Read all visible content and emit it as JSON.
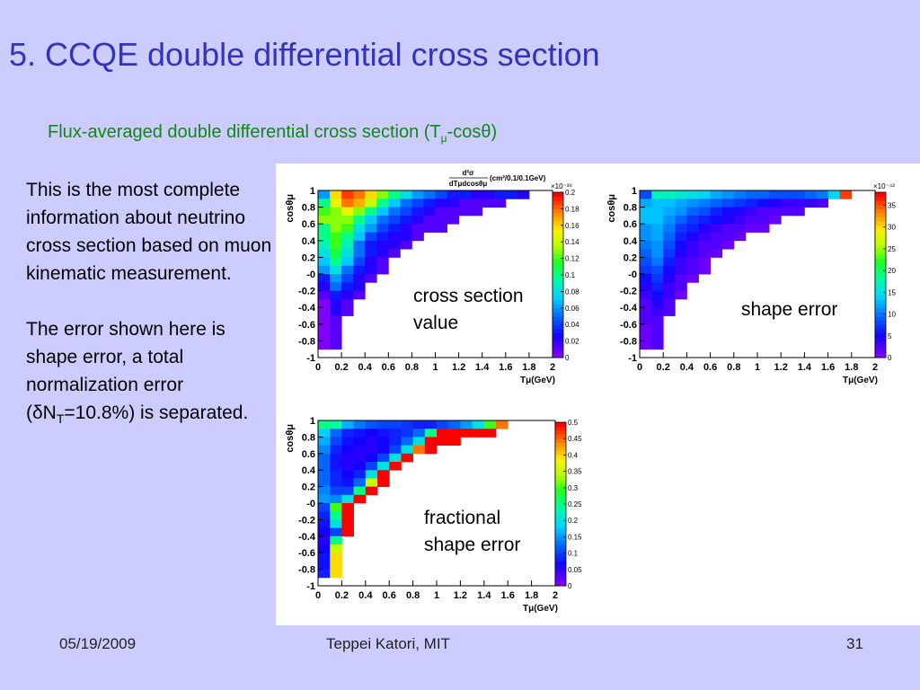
{
  "slide": {
    "title": "5. CCQE double differential cross section",
    "subtitle": {
      "text_before": "Flux-averaged double differential cross section (T",
      "text_sub": "μ",
      "text_after": "-cosθ)"
    },
    "paragraphs": [
      {
        "text": "This is the most complete information about neutrino cross section based on muon kinematic measurement."
      },
      {
        "text_before": "The error shown here is shape error, a total normalization error (δN",
        "text_sub": "T",
        "text_after": "=10.8%) is separated."
      }
    ],
    "footer": {
      "date": "05/19/2009",
      "author": "Teppei Katori, MIT",
      "page": "31"
    }
  },
  "chart_data": [
    {
      "type": "heatmap",
      "annotation": [
        "cross section",
        "value"
      ],
      "header_numerator": "d²σ",
      "header_denominator": "dTμdcosθμ",
      "header_unit": "(cm²/0.1/0.1GeV)",
      "xlabel": "Tμ(GeV)",
      "ylabel": "cosθμ",
      "xlim": [
        0,
        2
      ],
      "ylim": [
        -1,
        1
      ],
      "x_ticks": [
        "0",
        "0.2",
        "0.4",
        "0.6",
        "0.8",
        "1",
        "1.2",
        "1.4",
        "1.6",
        "1.8",
        "2"
      ],
      "y_ticks": [
        "1",
        "0.8",
        "0.6",
        "0.4",
        "0.2",
        "-0",
        "-0.2",
        "-0.4",
        "-0.6",
        "-0.8",
        "-1"
      ],
      "colorbar_ticks": [
        "0.2",
        "0.18",
        "0.16",
        "0.14",
        "0.12",
        "0.1",
        "0.08",
        "0.06",
        "0.04",
        "0.02",
        "0"
      ],
      "colorbar_range": [
        0,
        0.2
      ],
      "colorbar_multiplier": "×10⁻³⁹",
      "values": [
        [
          0.06,
          0.16,
          0.19,
          0.18,
          0.16,
          0.13,
          0.1,
          0.08,
          0.06,
          0.05,
          0.04,
          0.03,
          0.03,
          0.02,
          0.02,
          0.03,
          0.03,
          0.02
        ],
        [
          0.1,
          0.15,
          0.18,
          0.17,
          0.14,
          0.1,
          0.07,
          0.05,
          0.04,
          0.03,
          0.02,
          0.02,
          0.01,
          0.01,
          0.01,
          0.01
        ],
        [
          0.12,
          0.13,
          0.15,
          0.13,
          0.1,
          0.07,
          0.05,
          0.04,
          0.03,
          0.02,
          0.01,
          0.01,
          0.01,
          0.01
        ],
        [
          0.13,
          0.13,
          0.13,
          0.1,
          0.07,
          0.05,
          0.04,
          0.03,
          0.02,
          0.01,
          0.01,
          0.01
        ],
        [
          0.1,
          0.13,
          0.12,
          0.08,
          0.06,
          0.04,
          0.03,
          0.02,
          0.01,
          0.01,
          0.01
        ],
        [
          0.1,
          0.12,
          0.1,
          0.07,
          0.04,
          0.03,
          0.02,
          0.02,
          0.01
        ],
        [
          0.09,
          0.12,
          0.09,
          0.05,
          0.03,
          0.02,
          0.02,
          0.01
        ],
        [
          0.08,
          0.11,
          0.08,
          0.05,
          0.03,
          0.02,
          0.01
        ],
        [
          0.07,
          0.1,
          0.07,
          0.04,
          0.02,
          0.01
        ],
        [
          0.06,
          0.08,
          0.05,
          0.03,
          0.02,
          0.01
        ],
        [
          0.03,
          0.06,
          0.04,
          0.02,
          0.01
        ],
        [
          0.02,
          0.05,
          0.03,
          0.02
        ],
        [
          0.01,
          0.03,
          0.02,
          0.01
        ],
        [
          0.0,
          0.02,
          0.01
        ],
        [
          0.0,
          0.02,
          0.01
        ],
        [
          0.0,
          0.01
        ],
        [
          0.0,
          0.01
        ],
        [
          0.0,
          0.01
        ],
        [
          0.0,
          0.01
        ]
      ]
    },
    {
      "type": "heatmap",
      "annotation": [
        "shape error"
      ],
      "xlabel": "Tμ(GeV)",
      "ylabel": "cosθμ",
      "xlim": [
        0,
        2
      ],
      "ylim": [
        -1,
        1
      ],
      "x_ticks": [
        "0",
        "0.2",
        "0.4",
        "0.6",
        "0.8",
        "1",
        "1.2",
        "1.4",
        "1.6",
        "1.8",
        "2"
      ],
      "y_ticks": [
        "1",
        "0.8",
        "0.6",
        "0.4",
        "0.2",
        "-0",
        "-0.2",
        "-0.4",
        "-0.6",
        "-0.8",
        "-1"
      ],
      "colorbar_ticks": [
        "35",
        "30",
        "25",
        "20",
        "15",
        "10",
        "5",
        "0"
      ],
      "colorbar_range": [
        0,
        38
      ],
      "colorbar_multiplier": "×10⁻⁴²",
      "values": [
        [
          8,
          17,
          17,
          16,
          15,
          14,
          12,
          11,
          10,
          9,
          9,
          8,
          8,
          8,
          9,
          10,
          14,
          36
        ],
        [
          12,
          13,
          13,
          12,
          11,
          10,
          9,
          8,
          7,
          6,
          5,
          4,
          3,
          3,
          3,
          2
        ],
        [
          13,
          13,
          12,
          11,
          9,
          8,
          6,
          5,
          4,
          3,
          2,
          2,
          2,
          2
        ],
        [
          13,
          13,
          11,
          9,
          7,
          6,
          5,
          4,
          3,
          2,
          2,
          1
        ],
        [
          11,
          12,
          10,
          7,
          6,
          4,
          3,
          2,
          2,
          1,
          1
        ],
        [
          11,
          12,
          9,
          6,
          4,
          3,
          2,
          2,
          1
        ],
        [
          10,
          11,
          8,
          5,
          3,
          2,
          2,
          1
        ],
        [
          9,
          11,
          7,
          4,
          3,
          2,
          1
        ],
        [
          8,
          10,
          6,
          3,
          2,
          1
        ],
        [
          7,
          8,
          5,
          3,
          2,
          1
        ],
        [
          5,
          7,
          4,
          2,
          1
        ],
        [
          4,
          6,
          3,
          2
        ],
        [
          3,
          5,
          3,
          1
        ],
        [
          2,
          4,
          2
        ],
        [
          2,
          3,
          2
        ],
        [
          2,
          2
        ],
        [
          1,
          2
        ],
        [
          1,
          2
        ],
        [
          1,
          2
        ]
      ]
    },
    {
      "type": "heatmap",
      "annotation": [
        "fractional",
        "shape error"
      ],
      "xlabel": "Tμ(GeV)",
      "ylabel": "cosθμ",
      "xlim": [
        0,
        2
      ],
      "ylim": [
        -1,
        1
      ],
      "x_ticks": [
        "0",
        "0.2",
        "0.4",
        "0.6",
        "0.8",
        "1",
        "1.2",
        "1.4",
        "1.6",
        "1.8",
        "2"
      ],
      "y_ticks": [
        "1",
        "0.8",
        "0.6",
        "0.4",
        "0.2",
        "-0",
        "-0.2",
        "-0.4",
        "-0.6",
        "-0.8",
        "-1"
      ],
      "colorbar_ticks": [
        "0.5",
        "0.45",
        "0.4",
        "0.35",
        "0.3",
        "0.25",
        "0.2",
        "0.15",
        "0.1",
        "0.05",
        "0"
      ],
      "colorbar_range": [
        0,
        0.5
      ],
      "values": [
        [
          0.25,
          0.24,
          0.16,
          0.13,
          0.11,
          0.1,
          0.1,
          0.09,
          0.08,
          0.08,
          0.1,
          0.12,
          0.15,
          0.2,
          0.3,
          0.45
        ],
        [
          0.18,
          0.12,
          0.08,
          0.07,
          0.06,
          0.07,
          0.08,
          0.09,
          0.12,
          0.25,
          0.5,
          0.5,
          0.5,
          0.5,
          0.5
        ],
        [
          0.16,
          0.1,
          0.07,
          0.06,
          0.05,
          0.06,
          0.08,
          0.12,
          0.2,
          0.5,
          0.5,
          0.5
        ],
        [
          0.14,
          0.08,
          0.06,
          0.05,
          0.05,
          0.06,
          0.1,
          0.2,
          0.45,
          0.5
        ],
        [
          0.12,
          0.07,
          0.05,
          0.05,
          0.06,
          0.1,
          0.2,
          0.5
        ],
        [
          0.12,
          0.07,
          0.05,
          0.06,
          0.1,
          0.2,
          0.5
        ],
        [
          0.12,
          0.08,
          0.06,
          0.08,
          0.2,
          0.5
        ],
        [
          0.12,
          0.08,
          0.07,
          0.12,
          0.35,
          0.5
        ],
        [
          0.14,
          0.1,
          0.1,
          0.25,
          0.5
        ],
        [
          0.15,
          0.14,
          0.2,
          0.5
        ],
        [
          0.1,
          0.3,
          0.5
        ],
        [
          0.08,
          0.25,
          0.5
        ],
        [
          0.07,
          0.2,
          0.5
        ],
        [
          0.06,
          0.1,
          0.5
        ],
        [
          0.05,
          0.25
        ],
        [
          0.06,
          0.35
        ],
        [
          0.07,
          0.4
        ],
        [
          0.07,
          0.4
        ],
        [
          0.08,
          0.4
        ]
      ]
    }
  ]
}
